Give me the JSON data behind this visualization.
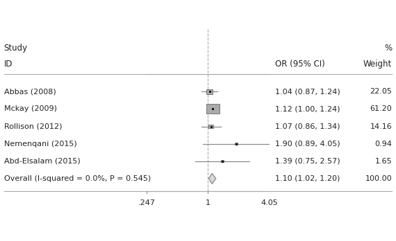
{
  "studies": [
    "Abbas (2008)",
    "Mckay (2009)",
    "Rollison (2012)",
    "Nemenqani (2015)",
    "Abd-Elsalam (2015)"
  ],
  "overall_label": "Overall (I-squared = 0.0%, P = 0.545)",
  "or": [
    1.04,
    1.12,
    1.07,
    1.9,
    1.39,
    1.1
  ],
  "ci_low": [
    0.87,
    1.0,
    0.86,
    0.89,
    0.75,
    1.02
  ],
  "ci_high": [
    1.24,
    1.24,
    1.34,
    4.05,
    2.57,
    1.2
  ],
  "weights": [
    22.05,
    61.2,
    14.16,
    0.94,
    1.65,
    100.0
  ],
  "or_ci_text": [
    "1.04 (0.87, 1.24)",
    "1.12 (1.00, 1.24)",
    "1.07 (0.86, 1.34)",
    "1.90 (0.89, 4.05)",
    "1.39 (0.75, 2.57)",
    "1.10 (1.02, 1.20)"
  ],
  "weight_text": [
    "22.05",
    "61.20",
    "14.16",
    "0.94",
    "1.65",
    "100.00"
  ],
  "xticks": [
    0.247,
    1.0,
    4.05
  ],
  "xticklabels": [
    ".247",
    "1",
    "4.05"
  ],
  "header_study": "Study",
  "header_percent": "%",
  "header_id": "ID",
  "header_or": "OR (95% CI)",
  "header_weight": "Weight",
  "box_color": "#aaaaaa",
  "diamond_facecolor": "#d8d8d8",
  "diamond_edgecolor": "#888888",
  "ci_line_color": "#888888",
  "hline_color": "#aaaaaa",
  "vline_color": "#aaaaaa",
  "text_color": "#222222",
  "bg_color": "#ffffff",
  "fontsize": 8.0,
  "fontsize_header": 8.5
}
